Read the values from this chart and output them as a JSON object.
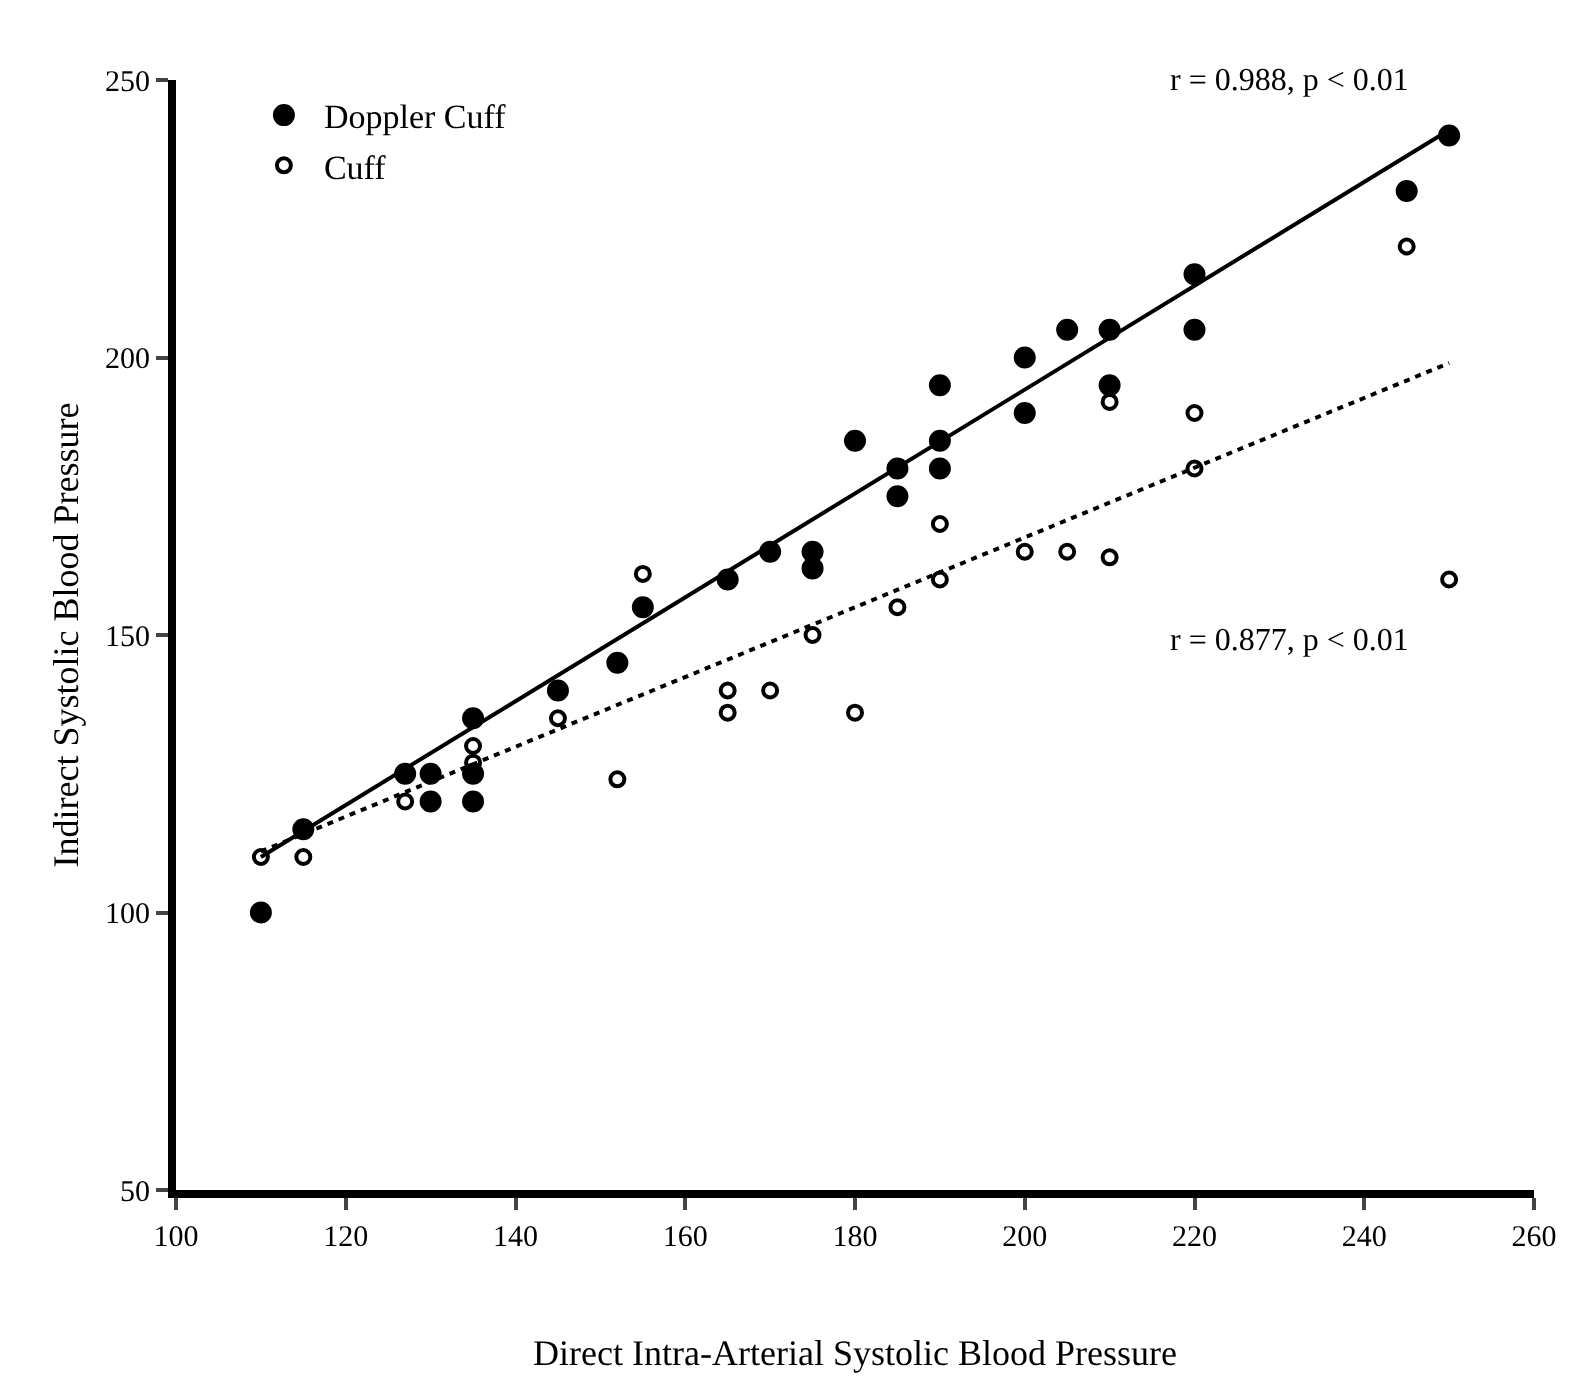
{
  "chart_data": {
    "type": "scatter",
    "xlabel": "Direct Intra-Arterial Systolic Blood Pressure",
    "ylabel": "Indirect Systolic Blood Pressure",
    "xlim": [
      100,
      260
    ],
    "xticks": [
      100,
      120,
      140,
      160,
      180,
      200,
      220,
      240,
      260
    ],
    "ylim": [
      50,
      250
    ],
    "yticks": [
      50,
      100,
      150,
      200,
      250
    ],
    "grid": false,
    "legend": "top left",
    "series": [
      {
        "name": "Doppler Cuff",
        "color": "#000000",
        "marker": "circle",
        "x": [
          110,
          115,
          127,
          130,
          130,
          135,
          135,
          135,
          145,
          152,
          155,
          165,
          170,
          175,
          175,
          180,
          185,
          185,
          190,
          190,
          190,
          200,
          200,
          205,
          210,
          210,
          220,
          220,
          245,
          250
        ],
        "values": [
          100,
          115,
          125,
          125,
          120,
          135,
          125,
          120,
          140,
          145,
          155,
          160,
          165,
          165,
          162,
          185,
          180,
          175,
          195,
          185,
          180,
          200,
          190,
          205,
          205,
          195,
          215,
          205,
          230,
          240
        ]
      },
      {
        "name": "Cuff",
        "color": "#000000",
        "marker": "circle",
        "x": [
          110,
          115,
          127,
          135,
          135,
          145,
          152,
          155,
          165,
          165,
          170,
          175,
          180,
          185,
          190,
          190,
          200,
          205,
          210,
          210,
          220,
          220,
          245,
          250
        ],
        "values": [
          110,
          110,
          120,
          130,
          127,
          135,
          124,
          161,
          140,
          136,
          140,
          150,
          136,
          155,
          170,
          160,
          165,
          165,
          192,
          164,
          190,
          180,
          220,
          160
        ]
      },
      {
        "type": "line",
        "color": "#000000",
        "marker": "none",
        "line_style": "solid",
        "x": [
          110,
          250
        ],
        "values": [
          110,
          241
        ]
      },
      {
        "type": "line",
        "color": "#000000",
        "marker": "none",
        "line_style": "dotted",
        "x": [
          110,
          250
        ],
        "values": [
          111,
          199
        ]
      }
    ],
    "annotations": [
      "r = 0.988, p < 0.01",
      "r = 0.877, p < 0.01"
    ]
  }
}
